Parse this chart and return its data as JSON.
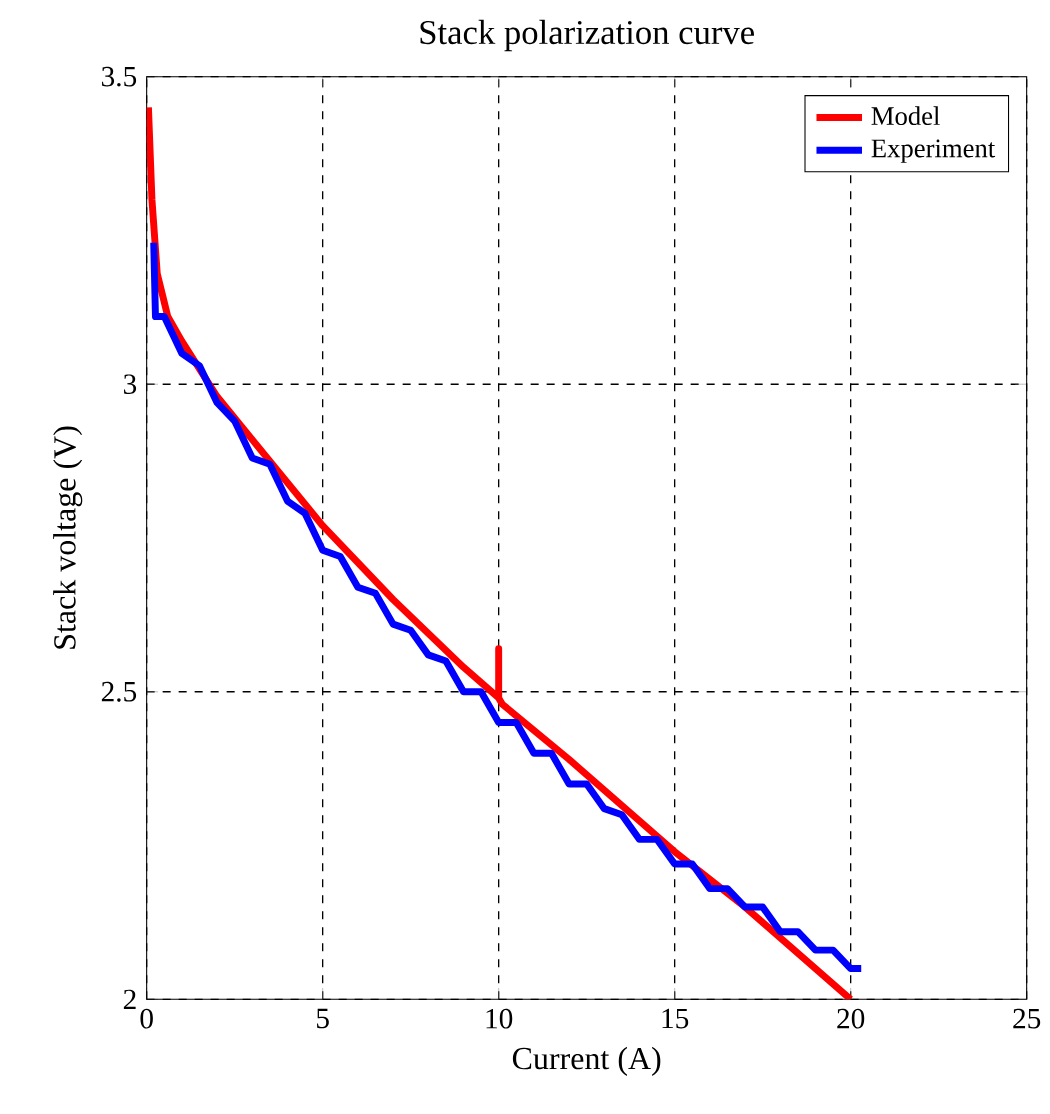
{
  "chart_data": {
    "type": "line",
    "title": "Stack polarization curve",
    "xlabel": "Current (A)",
    "ylabel": "Stack voltage (V)",
    "xlim": [
      0,
      25
    ],
    "ylim": [
      2,
      3.5
    ],
    "xticks": [
      0,
      5,
      10,
      15,
      20,
      25
    ],
    "yticks": [
      2,
      2.5,
      3,
      3.5
    ],
    "grid": true,
    "legend": "top right",
    "marker": "none",
    "line_style": "solid",
    "series": [
      {
        "name": "Model",
        "color": "#ff0000",
        "x": [
          0.05,
          0.15,
          0.3,
          0.6,
          1,
          2,
          3,
          5,
          7,
          9,
          10,
          10,
          10,
          10.1,
          12,
          15,
          17,
          20
        ],
        "values": [
          3.45,
          3.3,
          3.18,
          3.11,
          3.07,
          2.98,
          2.91,
          2.77,
          2.65,
          2.54,
          2.49,
          2.57,
          2.49,
          2.48,
          2.39,
          2.24,
          2.15,
          2.0
        ]
      },
      {
        "name": "Experiment",
        "color": "#0000ff",
        "x": [
          0.2,
          0.25,
          0.5,
          1.0,
          1.5,
          2.0,
          2.5,
          3.0,
          3.5,
          4.0,
          4.5,
          5.0,
          5.5,
          6.0,
          6.5,
          7.0,
          7.5,
          8.0,
          8.5,
          9.0,
          9.5,
          10.0,
          10.5,
          11.0,
          11.5,
          12.0,
          12.5,
          13.0,
          13.5,
          14.0,
          14.5,
          15.0,
          15.5,
          16.0,
          16.5,
          17.0,
          17.5,
          18.0,
          18.5,
          19.0,
          19.5,
          20.0,
          20.3
        ],
        "values": [
          3.23,
          3.11,
          3.11,
          3.05,
          3.03,
          2.97,
          2.94,
          2.88,
          2.87,
          2.81,
          2.79,
          2.73,
          2.72,
          2.67,
          2.66,
          2.61,
          2.6,
          2.56,
          2.55,
          2.5,
          2.5,
          2.45,
          2.45,
          2.4,
          2.4,
          2.35,
          2.35,
          2.31,
          2.3,
          2.26,
          2.26,
          2.22,
          2.22,
          2.18,
          2.18,
          2.15,
          2.15,
          2.11,
          2.11,
          2.08,
          2.08,
          2.05,
          2.05
        ]
      }
    ]
  }
}
